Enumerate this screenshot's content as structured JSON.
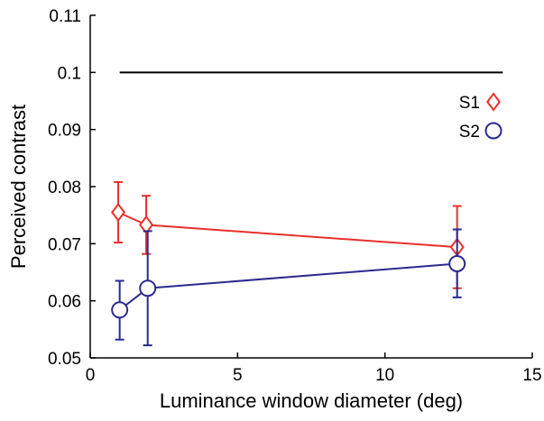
{
  "chart_data": {
    "type": "line",
    "title": "",
    "xlabel": "Luminance window diameter (deg)",
    "ylabel": "Perceived contrast",
    "xlim": [
      0,
      15
    ],
    "ylim": [
      0.05,
      0.11
    ],
    "xticks": [
      0,
      5,
      10,
      15
    ],
    "xtick_labels": [
      "0",
      "5",
      "10",
      "15"
    ],
    "yticks": [
      0.05,
      0.06,
      0.07,
      0.08,
      0.09,
      0.1,
      0.11
    ],
    "ytick_labels": [
      "0.05",
      "0.06",
      "0.07",
      "0.08",
      "0.09",
      "0.1",
      "0.11"
    ],
    "grid": false,
    "legend_position": "top-right",
    "reference_line": {
      "y": 0.1,
      "x_start": 1.0,
      "x_end": 14.0,
      "color": "#000000"
    },
    "series": [
      {
        "name": "S1",
        "color": "#e8312a",
        "marker": "diamond",
        "x": [
          0.95,
          1.9,
          12.45
        ],
        "y": [
          0.0755,
          0.0733,
          0.0694
        ],
        "err_low": [
          0.0702,
          0.0682,
          0.0622
        ],
        "err_high": [
          0.0808,
          0.0784,
          0.0766
        ]
      },
      {
        "name": "S2",
        "color": "#2c2a8f",
        "marker": "circle",
        "x": [
          1.0,
          1.95,
          12.45
        ],
        "y": [
          0.0584,
          0.0622,
          0.0665
        ],
        "err_low": [
          0.0532,
          0.0522,
          0.0606
        ],
        "err_high": [
          0.0635,
          0.0722,
          0.0725
        ]
      }
    ]
  }
}
